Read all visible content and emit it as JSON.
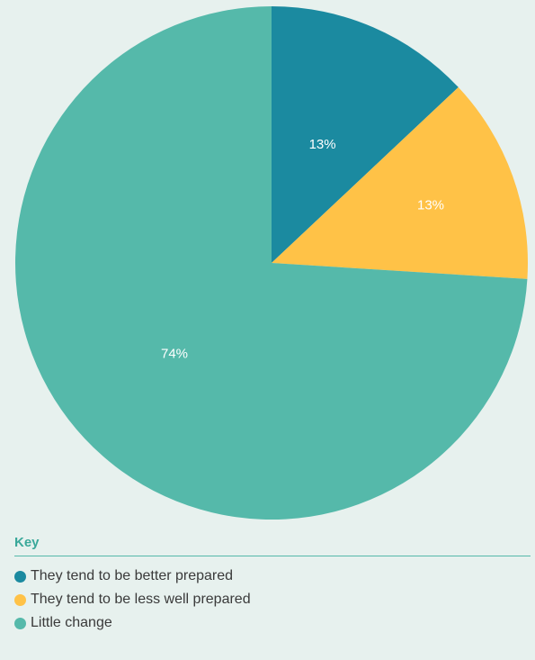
{
  "chart_data": {
    "type": "pie",
    "categories": [
      "They tend to be better prepared",
      "They tend to be less well prepared",
      "Little change"
    ],
    "values": [
      13,
      13,
      74
    ],
    "value_labels": [
      "13%",
      "13%",
      "74%"
    ],
    "colors": [
      "#1b8aa0",
      "#ffc247",
      "#55b9aa"
    ],
    "start_angle_deg": 0,
    "direction": "clockwise"
  },
  "legend": {
    "title": "Key",
    "items": [
      {
        "label": "They tend to be better prepared",
        "color": "#1b8aa0"
      },
      {
        "label": "They tend to be less well prepared",
        "color": "#ffc247"
      },
      {
        "label": "Little change",
        "color": "#55b9aa"
      }
    ]
  },
  "colors": {
    "background": "#e7f1ee",
    "key_title": "#3aa89a",
    "legend_text": "#3a3a3a"
  }
}
